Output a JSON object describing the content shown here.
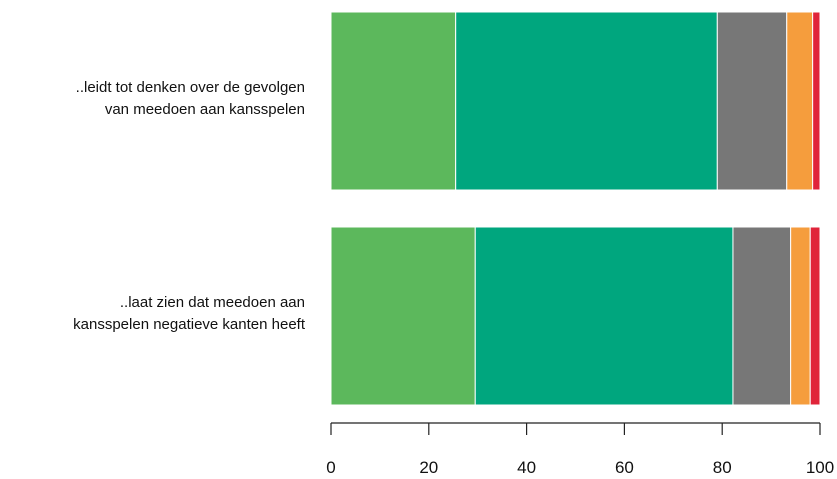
{
  "chart_data": {
    "type": "bar",
    "orientation": "horizontal",
    "stacked": true,
    "title": "",
    "xlabel": "",
    "ylabel": "",
    "xlim": [
      0,
      100
    ],
    "xticks": [
      0,
      20,
      40,
      60,
      80,
      100
    ],
    "categories": [
      {
        "lines": [
          "..leidt tot denken over de gevolgen",
          "van meedoen aan kansspelen"
        ]
      },
      {
        "lines": [
          "..laat zien dat meedoen aan",
          "kansspelen negatieve kanten heeft"
        ]
      }
    ],
    "series": [
      {
        "color": "#5cb85c",
        "values": [
          25.5,
          29.5
        ]
      },
      {
        "color": "#00a67e",
        "values": [
          53.5,
          52.7
        ]
      },
      {
        "color": "#777777",
        "values": [
          14.2,
          11.8
        ]
      },
      {
        "color": "#f59d3d",
        "values": [
          5.3,
          4.0
        ]
      },
      {
        "color": "#e0243a",
        "values": [
          1.5,
          2.0
        ]
      }
    ],
    "grid": false,
    "legend": "none"
  }
}
